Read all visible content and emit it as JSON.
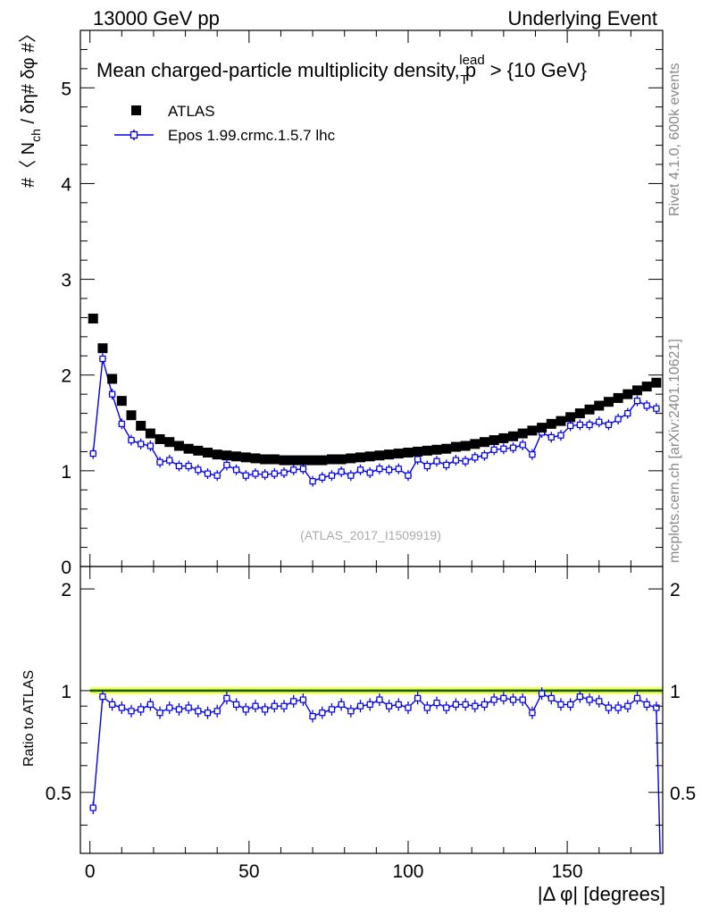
{
  "header": {
    "left": "13000 GeV pp",
    "right": "Underlying Event"
  },
  "side_labels": {
    "rivet": "Rivet 4.1.0,  600k events",
    "mcplots": "mcplots.cern.ch [arXiv:2401.10621]"
  },
  "watermark": "(ATLAS_2017_I1509919)",
  "colors": {
    "data": "#000000",
    "mc": "#0000ee",
    "band_outer": "#ffff66",
    "band_inner": "#55cc22"
  },
  "chart_data": [
    {
      "type": "scatter",
      "title": "Mean charged-particle multiplicity density, p",
      "title_sup": "lead",
      "title_sub": "T",
      "title_tail": " > {10 GeV}",
      "xlabel": "",
      "ylabel": "#〈 N",
      "ylabel_sub": "ch",
      "ylabel_tail": " / δη# δφ #〉",
      "xlim": [
        -3,
        180
      ],
      "ylim": [
        0,
        5.6
      ],
      "yticks": [
        0,
        1,
        2,
        3,
        4,
        5
      ],
      "legend": [
        "ATLAS",
        "Epos 1.99.crmc.1.5.7 lhc"
      ],
      "legend_position": "top-left",
      "series": [
        {
          "name": "ATLAS",
          "marker": "square",
          "x": [
            1,
            4,
            7,
            10,
            13,
            16,
            19,
            22,
            25,
            28,
            31,
            34,
            37,
            40,
            43,
            46,
            49,
            52,
            55,
            58,
            61,
            64,
            67,
            70,
            73,
            76,
            79,
            82,
            85,
            88,
            91,
            94,
            97,
            100,
            103,
            106,
            109,
            112,
            115,
            118,
            121,
            124,
            127,
            130,
            133,
            136,
            139,
            142,
            145,
            148,
            151,
            154,
            157,
            160,
            163,
            166,
            169,
            172,
            175,
            178
          ],
          "y": [
            2.59,
            2.28,
            1.96,
            1.73,
            1.58,
            1.47,
            1.39,
            1.33,
            1.3,
            1.26,
            1.23,
            1.21,
            1.19,
            1.17,
            1.16,
            1.15,
            1.14,
            1.13,
            1.12,
            1.12,
            1.11,
            1.11,
            1.11,
            1.11,
            1.11,
            1.12,
            1.12,
            1.13,
            1.14,
            1.15,
            1.16,
            1.17,
            1.18,
            1.19,
            1.2,
            1.21,
            1.22,
            1.23,
            1.25,
            1.26,
            1.28,
            1.3,
            1.32,
            1.34,
            1.36,
            1.39,
            1.42,
            1.45,
            1.49,
            1.52,
            1.56,
            1.6,
            1.64,
            1.68,
            1.72,
            1.76,
            1.8,
            1.84,
            1.88,
            1.92
          ]
        },
        {
          "name": "Epos 1.99.crmc.1.5.7 lhc",
          "marker": "open-cross",
          "x": [
            1,
            4,
            7,
            10,
            13,
            16,
            19,
            22,
            25,
            28,
            31,
            34,
            37,
            40,
            43,
            46,
            49,
            52,
            55,
            58,
            61,
            64,
            67,
            70,
            73,
            76,
            79,
            82,
            85,
            88,
            91,
            94,
            97,
            100,
            103,
            106,
            109,
            112,
            115,
            118,
            121,
            124,
            127,
            130,
            133,
            136,
            139,
            142,
            145,
            148,
            151,
            154,
            157,
            160,
            163,
            166,
            169,
            172,
            175,
            178
          ],
          "y": [
            1.18,
            2.17,
            1.8,
            1.49,
            1.32,
            1.28,
            1.26,
            1.09,
            1.11,
            1.05,
            1.05,
            1.01,
            0.97,
            0.95,
            1.06,
            1.01,
            0.95,
            0.97,
            0.96,
            0.97,
            0.98,
            1.01,
            1.02,
            0.89,
            0.93,
            0.95,
            0.99,
            0.95,
            1.01,
            0.98,
            1.02,
            1.01,
            1.02,
            0.95,
            1.12,
            1.05,
            1.1,
            1.06,
            1.11,
            1.1,
            1.14,
            1.16,
            1.22,
            1.23,
            1.24,
            1.27,
            1.17,
            1.4,
            1.35,
            1.37,
            1.47,
            1.48,
            1.48,
            1.51,
            1.48,
            1.54,
            1.6,
            1.73,
            1.68,
            1.65
          ]
        }
      ]
    },
    {
      "type": "scatter",
      "title": "",
      "xlabel": "|Δ φ| [degrees]",
      "ylabel": "Ratio to ATLAS",
      "xlim": [
        -3,
        180
      ],
      "ylim": [
        0.33,
        2.33
      ],
      "yticks": [
        0.5,
        1,
        2
      ],
      "xticks": [
        0,
        50,
        100,
        150
      ],
      "reference_band": {
        "inner": 0.01,
        "outer": 0.025
      },
      "series": [
        {
          "name": "Epos 1.99.crmc.1.5.7 lhc / ATLAS",
          "marker": "open-cross",
          "x": [
            1,
            4,
            7,
            10,
            13,
            16,
            19,
            22,
            25,
            28,
            31,
            34,
            37,
            40,
            43,
            46,
            49,
            52,
            55,
            58,
            61,
            64,
            67,
            70,
            73,
            76,
            79,
            82,
            85,
            88,
            91,
            94,
            97,
            100,
            103,
            106,
            109,
            112,
            115,
            118,
            121,
            124,
            127,
            130,
            133,
            136,
            139,
            142,
            145,
            148,
            151,
            154,
            157,
            160,
            163,
            166,
            169,
            172,
            175,
            178
          ],
          "y": [
            0.45,
            0.96,
            0.91,
            0.89,
            0.87,
            0.88,
            0.91,
            0.86,
            0.89,
            0.88,
            0.89,
            0.87,
            0.86,
            0.87,
            0.95,
            0.91,
            0.88,
            0.9,
            0.88,
            0.9,
            0.9,
            0.93,
            0.94,
            0.84,
            0.86,
            0.88,
            0.91,
            0.87,
            0.9,
            0.91,
            0.94,
            0.9,
            0.91,
            0.89,
            0.95,
            0.89,
            0.92,
            0.89,
            0.91,
            0.91,
            0.9,
            0.91,
            0.94,
            0.95,
            0.94,
            0.94,
            0.86,
            0.98,
            0.95,
            0.91,
            0.91,
            0.96,
            0.94,
            0.93,
            0.89,
            0.89,
            0.9,
            0.95,
            0.91,
            0.89
          ]
        }
      ]
    }
  ]
}
